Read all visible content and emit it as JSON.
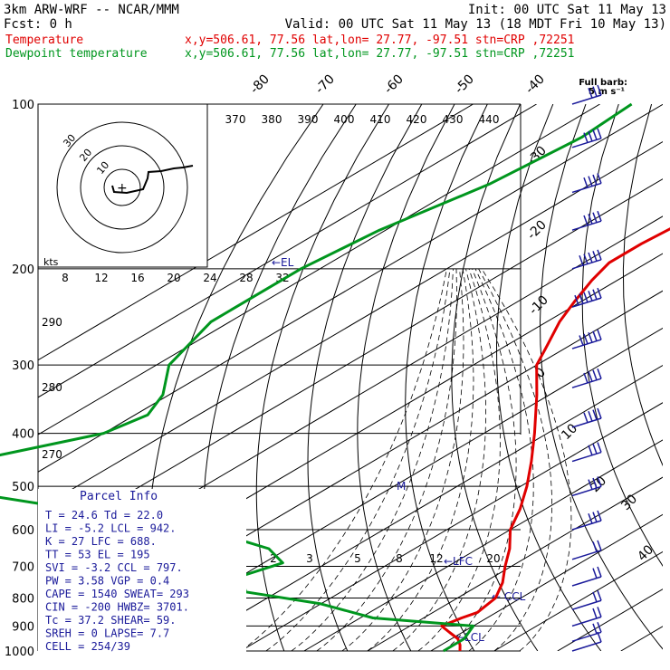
{
  "header": {
    "model": "3km ARW-WRF -- NCAR/MMM",
    "init": "Init: 00 UTC Sat 11 May 13",
    "fcst": "Fcst:     0 h",
    "valid": "Valid: 00 UTC Sat 11 May 13 (18 MDT Fri 10 May 13)",
    "temp_label": "Temperature",
    "dew_label": "Dewpoint temperature",
    "temp_info": "x,y=506.61, 77.56   lat,lon= 27.77, -97.51   stn=CRP ,72251",
    "dew_info": "x,y=506.61, 77.56   lat,lon= 27.77, -97.51   stn=CRP ,72251"
  },
  "colors": {
    "temperature": "#e00000",
    "dewpoint": "#00961e",
    "annotation": "#1a1a9a",
    "grid": "#000000",
    "barb": "#1a1a9a"
  },
  "parcel_info": {
    "title": "Parcel Info",
    "rows": [
      "T  =   24.6  Td =  22.0",
      "LI =   -5.2  LCL =  942.",
      "K  =     27  LFC =  688.",
      "TT =     53  EL  =   195",
      "SVI =  -3.2  CCL =  797.",
      "PW =   3.58  VGP =   0.4",
      "CAPE = 1540  SWEAT=  293",
      "CIN =  -200  HWBZ= 3701.",
      "Tc  =  37.2  SHEAR=  59.",
      "SREH =    0  LAPSE=  7.7",
      "CELL = 254/39"
    ]
  },
  "barb_legend": {
    "line1": "Full barb:",
    "line2": "5 m s⁻¹"
  },
  "hodograph": {
    "units": "kts",
    "rings": [
      "10",
      "20",
      "30"
    ]
  },
  "chart_data": {
    "type": "skew-t",
    "y_axis": {
      "scale": "log-pressure",
      "units": "hPa",
      "range": [
        1000,
        100
      ],
      "ticks": [
        100,
        200,
        300,
        400,
        500,
        600,
        700,
        800,
        900,
        1000
      ]
    },
    "isotherm_labels": [
      "-80",
      "-70",
      "-60",
      "-50",
      "-40",
      "-30",
      "-20",
      "-10",
      "0",
      "10",
      "20",
      "30",
      "40"
    ],
    "theta_e_labels": [
      "370",
      "380",
      "390",
      "400",
      "410",
      "420",
      "430",
      "440"
    ],
    "theta_labels": [
      "290",
      "280",
      "270"
    ],
    "mixing_ratio_labels": [
      "2",
      "3",
      "5",
      "8",
      "12"
    ],
    "ticks_hodo_x": [
      "8",
      "12",
      "16",
      "20",
      "24",
      "28",
      "32"
    ],
    "markers": [
      "EL",
      "LFC",
      "CCL",
      "LCL",
      "M"
    ],
    "temperature": [
      [
        100,
        -70
      ],
      [
        110,
        -67
      ],
      [
        125,
        -61
      ],
      [
        140,
        -57
      ],
      [
        160,
        -55
      ],
      [
        180,
        -56
      ],
      [
        195,
        -56
      ],
      [
        210,
        -54
      ],
      [
        230,
        -51
      ],
      [
        250,
        -48
      ],
      [
        280,
        -43
      ],
      [
        300,
        -40
      ],
      [
        340,
        -32
      ],
      [
        400,
        -22
      ],
      [
        450,
        -15
      ],
      [
        500,
        -9
      ],
      [
        550,
        -4
      ],
      [
        600,
        0
      ],
      [
        650,
        5
      ],
      [
        700,
        9
      ],
      [
        750,
        13
      ],
      [
        800,
        16
      ],
      [
        850,
        17
      ],
      [
        870,
        16
      ],
      [
        900,
        15
      ],
      [
        925,
        18
      ],
      [
        950,
        21
      ],
      [
        975,
        23
      ],
      [
        1000,
        24.6
      ]
    ],
    "dewpoint": [
      [
        100,
        -95
      ],
      [
        115,
        -94
      ],
      [
        140,
        -96
      ],
      [
        170,
        -101
      ],
      [
        200,
        -103
      ],
      [
        250,
        -103
      ],
      [
        300,
        -98
      ],
      [
        340,
        -91
      ],
      [
        370,
        -88
      ],
      [
        400,
        -90
      ],
      [
        440,
        -101
      ],
      [
        470,
        -110
      ],
      [
        500,
        -103
      ],
      [
        540,
        -80
      ],
      [
        600,
        -48
      ],
      [
        650,
        -33
      ],
      [
        690,
        -27
      ],
      [
        730,
        -30
      ],
      [
        780,
        -25
      ],
      [
        820,
        -10
      ],
      [
        870,
        2
      ],
      [
        900,
        20
      ],
      [
        950,
        22
      ],
      [
        1000,
        22
      ]
    ],
    "wind_barbs": [
      {
        "p": 100,
        "spd_ms": 16
      },
      {
        "p": 120,
        "spd_ms": 18
      },
      {
        "p": 145,
        "spd_ms": 20
      },
      {
        "p": 170,
        "spd_ms": 22
      },
      {
        "p": 200,
        "spd_ms": 27
      },
      {
        "p": 235,
        "spd_ms": 28
      },
      {
        "p": 280,
        "spd_ms": 25
      },
      {
        "p": 330,
        "spd_ms": 22
      },
      {
        "p": 390,
        "spd_ms": 20
      },
      {
        "p": 450,
        "spd_ms": 17
      },
      {
        "p": 520,
        "spd_ms": 15
      },
      {
        "p": 600,
        "spd_ms": 14
      },
      {
        "p": 680,
        "spd_ms": 11
      },
      {
        "p": 760,
        "spd_ms": 9
      },
      {
        "p": 840,
        "spd_ms": 10
      },
      {
        "p": 900,
        "spd_ms": 12
      },
      {
        "p": 960,
        "spd_ms": 10
      },
      {
        "p": 1000,
        "spd_ms": 7
      }
    ]
  }
}
